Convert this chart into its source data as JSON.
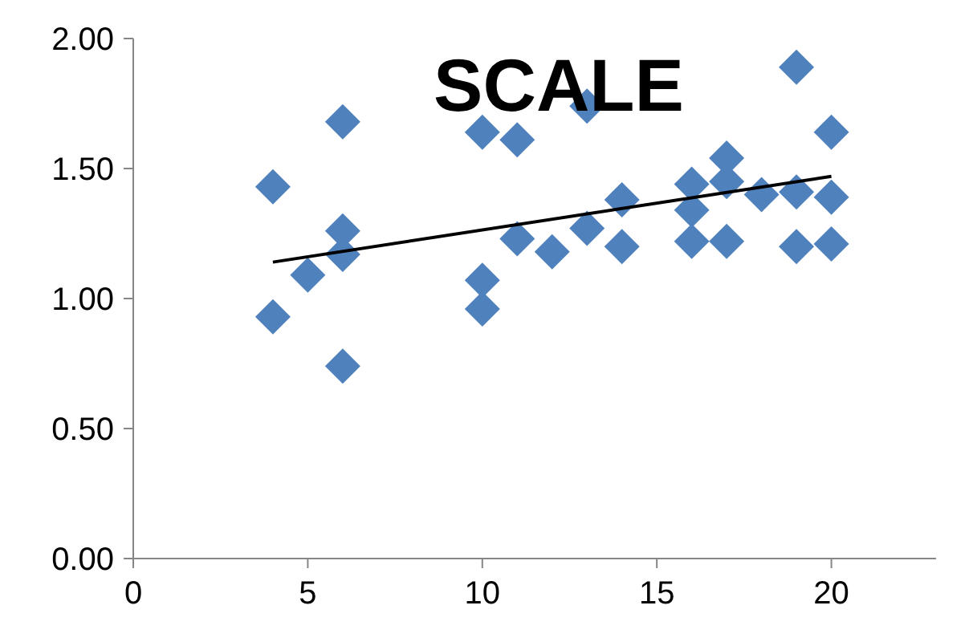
{
  "chart_data": {
    "type": "scatter",
    "title": "SCALE",
    "xlim": [
      0,
      23
    ],
    "xticks": [
      0,
      5,
      10,
      15,
      20
    ],
    "ylim": [
      0,
      2
    ],
    "yticks": [
      {
        "value": 0,
        "label": "0.00"
      },
      {
        "value": 0.5,
        "label": "0.50"
      },
      {
        "value": 1,
        "label": "1.00"
      },
      {
        "value": 1.5,
        "label": "1.50"
      },
      {
        "value": 2,
        "label": "2.00"
      }
    ],
    "grid": false,
    "series": [
      {
        "marker": "diamond",
        "color": "#4f81bd",
        "x": [
          4,
          4,
          5,
          6,
          6,
          6,
          6,
          10,
          10,
          10,
          11,
          11,
          12,
          13,
          13,
          14,
          14,
          16,
          16,
          16,
          17,
          17,
          17,
          18,
          19,
          19,
          19,
          20,
          20,
          20
        ],
        "values": [
          1.43,
          0.93,
          1.09,
          1.68,
          1.26,
          1.17,
          0.74,
          1.64,
          1.07,
          0.96,
          1.61,
          1.23,
          1.18,
          1.74,
          1.27,
          1.38,
          1.2,
          1.44,
          1.34,
          1.22,
          1.54,
          1.45,
          1.22,
          1.4,
          1.89,
          1.41,
          1.2,
          1.64,
          1.39,
          1.21
        ]
      },
      {
        "type": "line",
        "marker": "none",
        "color": "#000000",
        "x": [
          4,
          20
        ],
        "values": [
          1.14,
          1.47
        ]
      }
    ]
  }
}
